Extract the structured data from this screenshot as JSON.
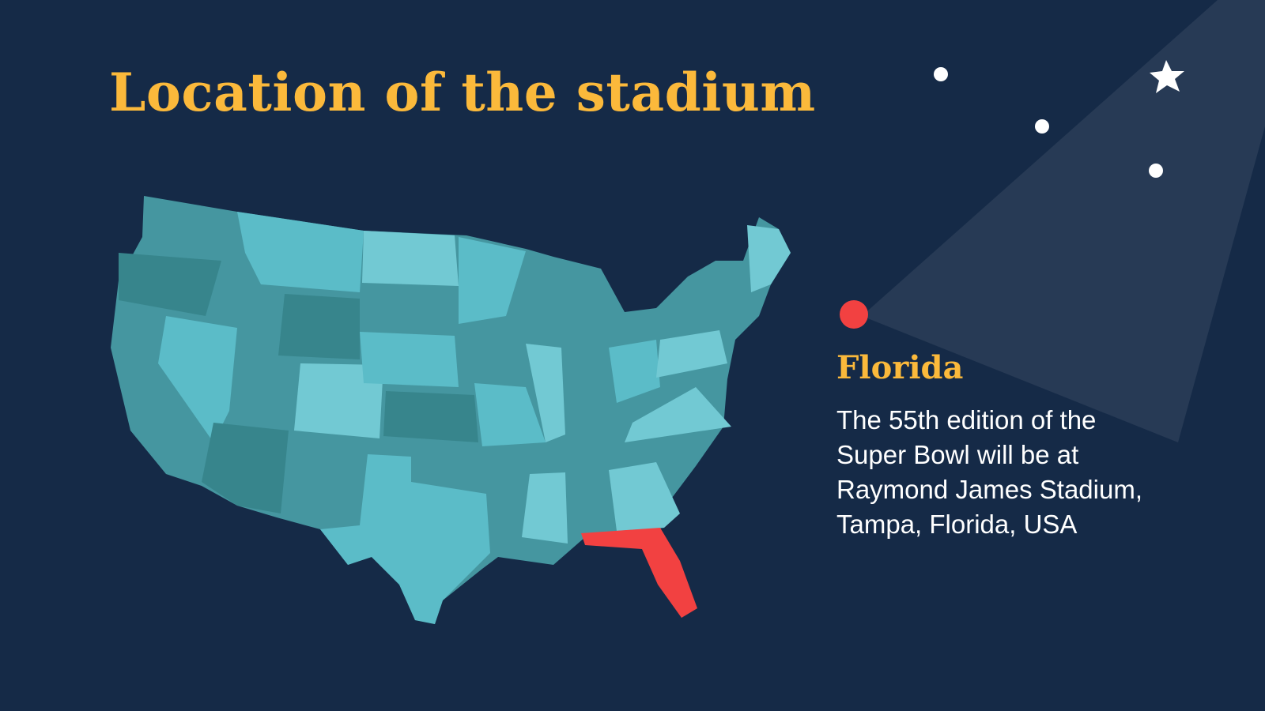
{
  "title": "Location of the stadium",
  "location": {
    "name": "Florida",
    "description": [
      "The 55th edition of the",
      "Super Bowl will be at",
      "Raymond James Stadium,",
      "Tampa, Florida, USA"
    ]
  }
}
